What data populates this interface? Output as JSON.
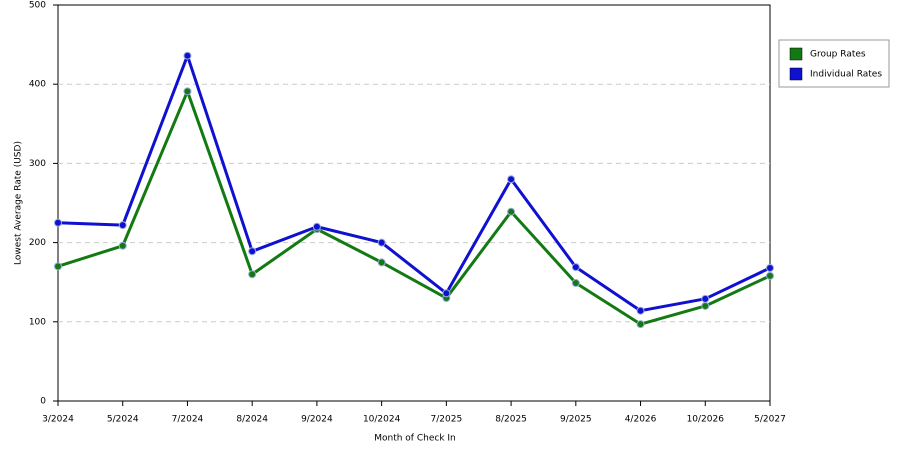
{
  "chart_data": {
    "type": "line",
    "xlabel": "Month of Check In",
    "ylabel": "Lowest Average Rate (USD)",
    "categories": [
      "3/2024",
      "5/2024",
      "7/2024",
      "8/2024",
      "9/2024",
      "10/2024",
      "7/2025",
      "8/2025",
      "9/2025",
      "4/2026",
      "10/2026",
      "5/2027"
    ],
    "series": [
      {
        "name": "Group Rates",
        "color": "#137a13",
        "values": [
          170,
          196,
          391,
          160,
          217,
          175,
          130,
          239,
          149,
          97,
          120,
          158
        ]
      },
      {
        "name": "Individual Rates",
        "color": "#1010d0",
        "values": [
          225,
          222,
          436,
          189,
          220,
          200,
          136,
          280,
          169,
          114,
          129,
          168
        ]
      }
    ],
    "ylim": [
      0,
      500
    ],
    "yticks": [
      0,
      100,
      200,
      300,
      400,
      500
    ],
    "grid": true,
    "legend": "right"
  }
}
